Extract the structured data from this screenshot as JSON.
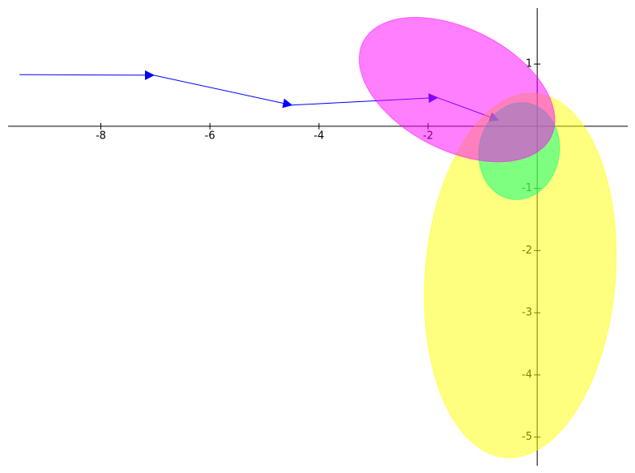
{
  "chart_data": {
    "type": "vector-ellipse",
    "xlim": [
      -9.7,
      1.66
    ],
    "ylim": [
      -5.46,
      1.9
    ],
    "xticks": [
      -8,
      -6,
      -4,
      -2
    ],
    "yticks": [
      1,
      -1,
      -2,
      -3,
      -4,
      -5
    ],
    "arrows": {
      "color": "#0000ff",
      "x": [
        -9.49,
        -7.03,
        -4.5,
        -1.83,
        -0.71
      ],
      "y": [
        0.83,
        0.82,
        0.34,
        0.46,
        0.1
      ]
    },
    "ellipses": [
      {
        "color": "#ffff00",
        "center": [
          -0.31,
          -2.4
        ],
        "axis1": [
          0.27,
          2.93
        ],
        "axis2": [
          1.74,
          -0.12
        ]
      },
      {
        "color": "#00ff80",
        "center": [
          -0.33,
          -0.4
        ],
        "axis1": [
          0.74,
          0.0
        ],
        "axis2": [
          0.05,
          0.78
        ]
      },
      {
        "color": "#ff00ff",
        "center": [
          -1.47,
          0.59
        ],
        "axis1": [
          1.72,
          -0.77
        ],
        "axis2": [
          0.51,
          0.87
        ]
      }
    ]
  }
}
